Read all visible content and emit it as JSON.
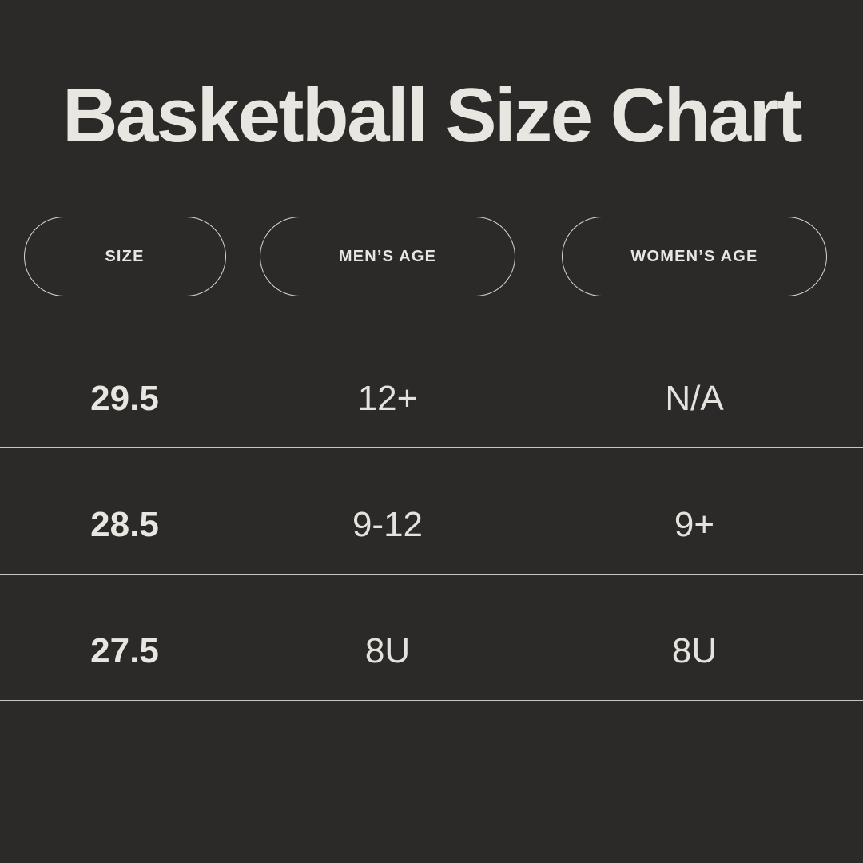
{
  "page": {
    "background_color": "#2b2a29",
    "text_color": "#e8e6e0",
    "divider_color": "#c9c7c1",
    "pill_border_color": "#d7d5cf"
  },
  "chart_data": {
    "type": "table",
    "title": "Basketball Size Chart",
    "columns": [
      "SIZE",
      "MEN’S AGE",
      "WOMEN’S AGE"
    ],
    "rows": [
      [
        "29.5",
        "12+",
        "N/A"
      ],
      [
        "28.5",
        "9-12",
        "9+"
      ],
      [
        "27.5",
        "8U",
        "8U"
      ]
    ],
    "layout_hints": {
      "style": "dark infographic table",
      "header_style": "outlined pill capsules",
      "row_dividers": "full-width 1px light lines below each row"
    }
  }
}
